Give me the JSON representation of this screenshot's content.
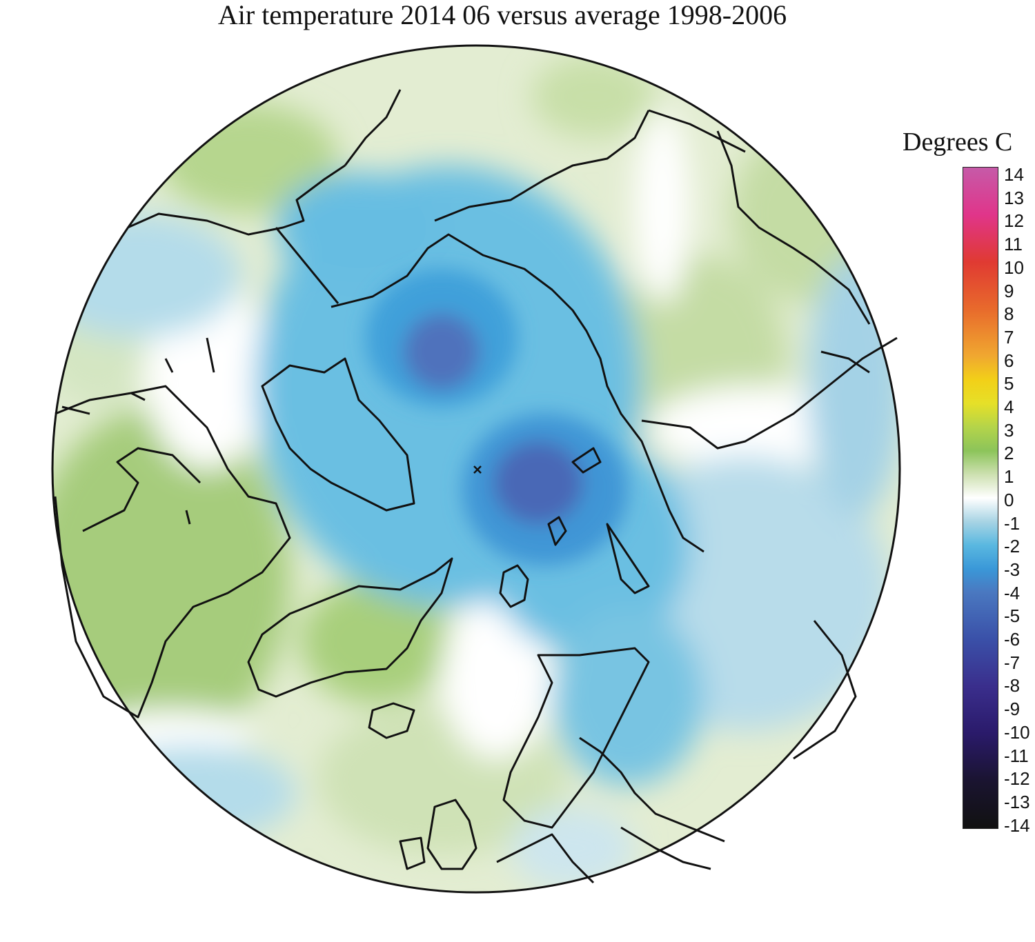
{
  "title": "Air temperature 2014 06 versus average 1998-2006",
  "legend": {
    "title": "Degrees C",
    "ticks": [
      "14",
      "13",
      "12",
      "11",
      "10",
      "9",
      "8",
      "7",
      "6",
      "5",
      "4",
      "3",
      "2",
      "1",
      "0",
      "-1",
      "-2",
      "-3",
      "-4",
      "-5",
      "-6",
      "-7",
      "-8",
      "-9",
      "-10",
      "-11",
      "-12",
      "-13",
      "-14"
    ],
    "range": [
      -14,
      14
    ],
    "colors": [
      {
        "value": 14,
        "color": "#c65aa8"
      },
      {
        "value": 12,
        "color": "#e0358a"
      },
      {
        "value": 10,
        "color": "#e03a32"
      },
      {
        "value": 8,
        "color": "#e86a2c"
      },
      {
        "value": 6,
        "color": "#f0a830"
      },
      {
        "value": 5,
        "color": "#f2d018"
      },
      {
        "value": 4,
        "color": "#e6e028"
      },
      {
        "value": 3,
        "color": "#b4d44a"
      },
      {
        "value": 2,
        "color": "#8cc45a"
      },
      {
        "value": 1,
        "color": "#cde0b0"
      },
      {
        "value": 0,
        "color": "#ffffff"
      },
      {
        "value": -1,
        "color": "#a8d4e4"
      },
      {
        "value": -2,
        "color": "#5ab8e0"
      },
      {
        "value": -3,
        "color": "#3a98d8"
      },
      {
        "value": -4,
        "color": "#4a78c0"
      },
      {
        "value": -6,
        "color": "#3a50a8"
      },
      {
        "value": -8,
        "color": "#3a2e8c"
      },
      {
        "value": -10,
        "color": "#2a1a6a"
      },
      {
        "value": -12,
        "color": "#1a1430"
      },
      {
        "value": -14,
        "color": "#111111"
      }
    ]
  }
}
